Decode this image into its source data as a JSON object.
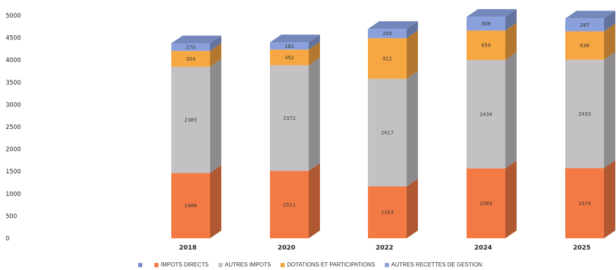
{
  "chart_data": {
    "type": "bar",
    "stacked": true,
    "style": "3d-column",
    "categories": [
      "2018",
      "2020",
      "2022",
      "2024",
      "2025"
    ],
    "ylim": [
      0,
      5000
    ],
    "yticks": [
      "0",
      "500",
      "1000",
      "1500",
      "2000",
      "2500",
      "3000",
      "3500",
      "4000",
      "4500",
      "5000"
    ],
    "grid": false,
    "legend_position": "bottom",
    "series": [
      {
        "name": "",
        "color": "#7f8fc9",
        "values": [
          0,
          0,
          0,
          0,
          0
        ]
      },
      {
        "name": "IMPOTS DIRECTS",
        "color": "#f37a45",
        "values": [
          1466,
          1511,
          1163,
          1569,
          1574
        ]
      },
      {
        "name": "AUTRES IMPOTS",
        "color": "#c4c1c4",
        "values": [
          2385,
          2372,
          2417,
          2434,
          2433
        ]
      },
      {
        "name": "DOTATIONS ET PARTICIPATIONS",
        "color": "#f7a742",
        "values": [
          354,
          352,
          912,
          659,
          638
        ]
      },
      {
        "name": "AUTRES RECETTES DE GESTION",
        "color": "#8aa0dc",
        "values": [
          170,
          161,
          205,
          308,
          287
        ]
      }
    ],
    "data_labels": [
      [
        "1466",
        "2385",
        "354",
        "170"
      ],
      [
        "1511",
        "2372",
        "352",
        "161"
      ],
      [
        "1163",
        "2417",
        "912",
        "205"
      ],
      [
        "1569",
        "2434",
        "659",
        "308"
      ],
      [
        "1574",
        "2433",
        "638",
        "287"
      ]
    ]
  }
}
